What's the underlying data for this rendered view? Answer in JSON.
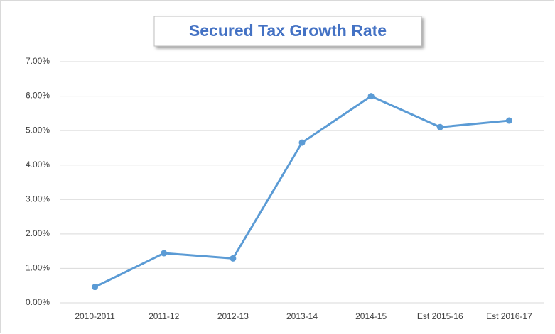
{
  "chart_data": {
    "type": "line",
    "title": "Secured Tax Growth Rate",
    "categories": [
      "2010-2011",
      "2011-12",
      "2012-13",
      "2013-14",
      "2014-15",
      "Est 2015-16",
      "Est 2016-17"
    ],
    "series": [
      {
        "name": "Secured Tax Growth Rate",
        "color": "#5b9bd5",
        "values": [
          0.46,
          1.44,
          1.29,
          4.65,
          6.0,
          5.1,
          5.29
        ]
      }
    ],
    "ylim": [
      0,
      7
    ],
    "yticks": [
      {
        "value": 0,
        "label": "0.00%"
      },
      {
        "value": 1,
        "label": "1.00%"
      },
      {
        "value": 2,
        "label": "2.00%"
      },
      {
        "value": 3,
        "label": "3.00%"
      },
      {
        "value": 4,
        "label": "4.00%"
      },
      {
        "value": 5,
        "label": "5.00%"
      },
      {
        "value": 6,
        "label": "6.00%"
      },
      {
        "value": 7,
        "label": "7.00%"
      }
    ],
    "grid": true
  }
}
